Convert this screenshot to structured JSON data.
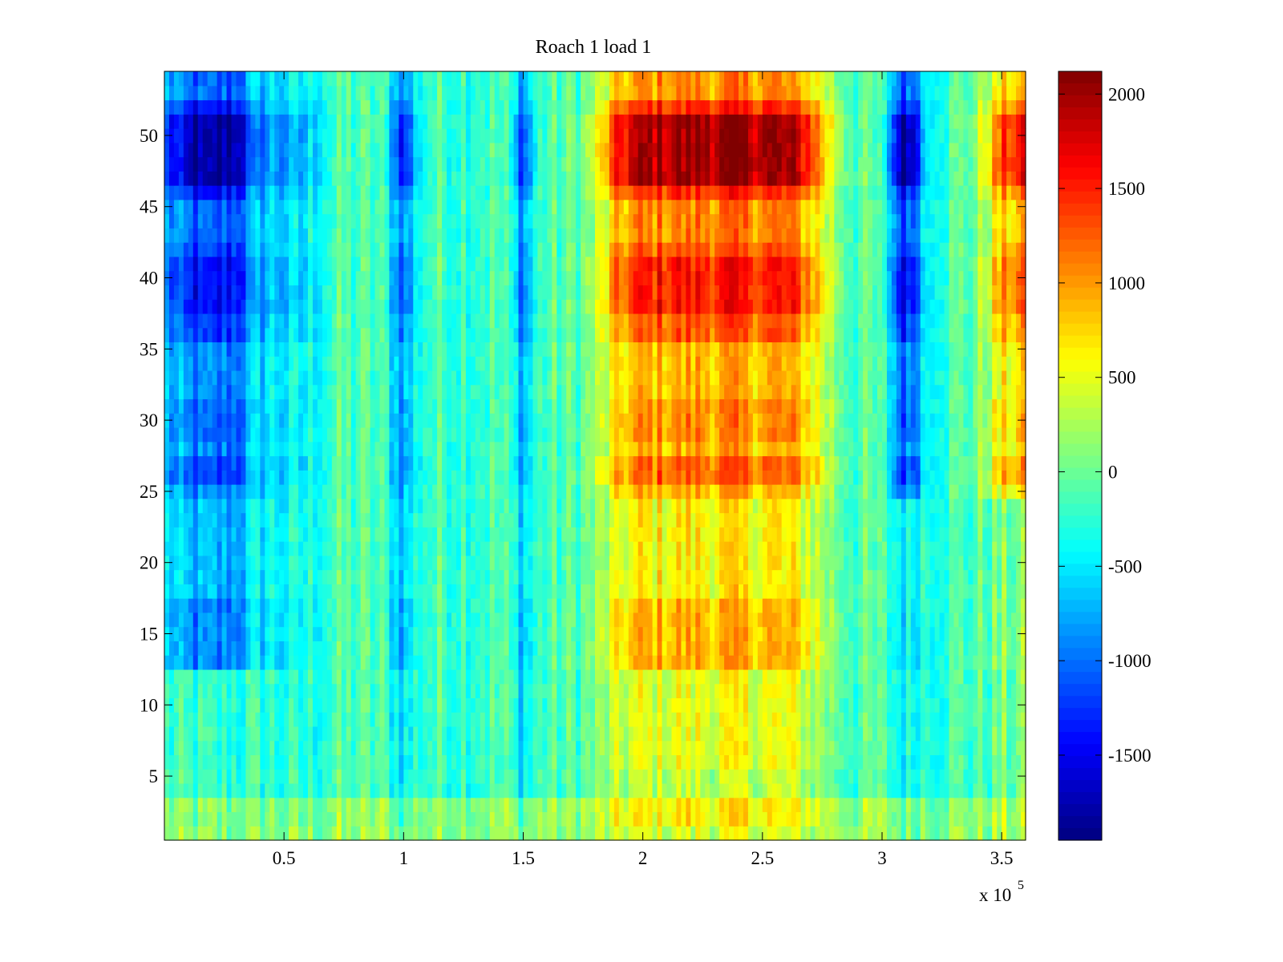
{
  "chart_data": {
    "type": "heatmap",
    "title": "Roach 1 load 1",
    "xlabel": "",
    "ylabel": "",
    "x_exponent_label": "x 10",
    "x_exponent_power": "5",
    "xlim": [
      0,
      3.6
    ],
    "ylim": [
      0.5,
      54.5
    ],
    "x_ticks": [
      0.5,
      1,
      1.5,
      2,
      2.5,
      3,
      3.5
    ],
    "x_tick_labels": [
      "0.5",
      "1",
      "1.5",
      "2",
      "2.5",
      "3",
      "3.5"
    ],
    "y_ticks": [
      5,
      10,
      15,
      20,
      25,
      30,
      35,
      40,
      45,
      50
    ],
    "y_tick_labels": [
      "5",
      "10",
      "15",
      "20",
      "25",
      "30",
      "35",
      "40",
      "45",
      "50"
    ],
    "rows": 54,
    "colormap": "jet",
    "color_range": [
      -1950,
      2120
    ],
    "colorbar": {
      "ticks": [
        2000,
        1500,
        1000,
        500,
        0,
        -500,
        -1000,
        -1500
      ],
      "tick_labels": [
        "2000",
        "1500",
        "1000",
        "500",
        "0",
        "-500",
        "-1000",
        "-1500"
      ],
      "placement": "right"
    },
    "row_levels": {
      "bottom_rows": "1-12: mild positive in 1.9-2.8 region (~400-700), near 0 elsewhere",
      "mid_rows": "13-36: strong positive in 1.9-2.8 (~800-1400), negative (-600 to -1200) left of 0.3",
      "top_rows": "37-52: peak positive ~2100 at rows 47-51 in 1.9-2.8, strong negative ~-1900 near x 0.1-0.3 and 3.0-3.2"
    }
  }
}
